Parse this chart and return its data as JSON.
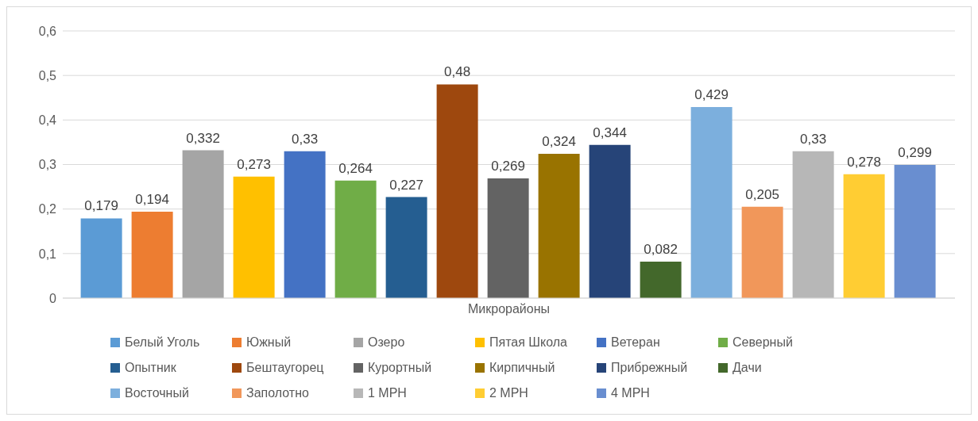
{
  "chart_data": {
    "type": "bar",
    "categories": [
      "Микрорайоны"
    ],
    "series": [
      {
        "name": "Белый Уголь",
        "color": "#5b9bd5",
        "values": [
          0.179
        ],
        "value_labels": [
          "0,179"
        ]
      },
      {
        "name": "Южный",
        "color": "#ed7d31",
        "values": [
          0.194
        ],
        "value_labels": [
          "0,194"
        ]
      },
      {
        "name": "Озеро",
        "color": "#a5a5a5",
        "values": [
          0.332
        ],
        "value_labels": [
          "0,332"
        ]
      },
      {
        "name": "Пятая Школа",
        "color": "#ffc000",
        "values": [
          0.273
        ],
        "value_labels": [
          "0,273"
        ]
      },
      {
        "name": "Ветеран",
        "color": "#4472c4",
        "values": [
          0.33
        ],
        "value_labels": [
          "0,33"
        ]
      },
      {
        "name": "Северный",
        "color": "#70ad47",
        "values": [
          0.264
        ],
        "value_labels": [
          "0,264"
        ]
      },
      {
        "name": "Опытник",
        "color": "#255e91",
        "values": [
          0.227
        ],
        "value_labels": [
          "0,227"
        ]
      },
      {
        "name": "Бештаугорец",
        "color": "#9e480e",
        "values": [
          0.48
        ],
        "value_labels": [
          "0,48"
        ]
      },
      {
        "name": "Курортный",
        "color": "#636363",
        "values": [
          0.269
        ],
        "value_labels": [
          "0,269"
        ]
      },
      {
        "name": "Кирпичный",
        "color": "#997300",
        "values": [
          0.324
        ],
        "value_labels": [
          "0,324"
        ]
      },
      {
        "name": "Прибрежный",
        "color": "#264478",
        "values": [
          0.344
        ],
        "value_labels": [
          "0,344"
        ]
      },
      {
        "name": "Дачи",
        "color": "#43682b",
        "values": [
          0.082
        ],
        "value_labels": [
          "0,082"
        ]
      },
      {
        "name": "Восточный",
        "color": "#7cafdd",
        "values": [
          0.429
        ],
        "value_labels": [
          "0,429"
        ]
      },
      {
        "name": "Заполотно",
        "color": "#f1975a",
        "values": [
          0.205
        ],
        "value_labels": [
          "0,205"
        ]
      },
      {
        "name": "1 МРН",
        "color": "#b7b7b7",
        "values": [
          0.33
        ],
        "value_labels": [
          "0,33"
        ]
      },
      {
        "name": "2 МРН",
        "color": "#ffcd33",
        "values": [
          0.278
        ],
        "value_labels": [
          "0,278"
        ]
      },
      {
        "name": "4 МРН",
        "color": "#698ed0",
        "values": [
          0.299
        ],
        "value_labels": [
          "0,299"
        ]
      }
    ],
    "ylim": [
      0,
      0.6
    ],
    "yticks": [
      0,
      {
        "value": 0.1,
        "label": "0,1"
      },
      {
        "value": 0.2,
        "label": "0,2"
      },
      {
        "value": 0.3,
        "label": "0,3"
      },
      {
        "value": 0.4,
        "label": "0,4"
      },
      {
        "value": 0.5,
        "label": "0,5"
      },
      {
        "value": 0.6,
        "label": "0,6"
      }
    ],
    "grid": "y",
    "legend": "bottom"
  }
}
